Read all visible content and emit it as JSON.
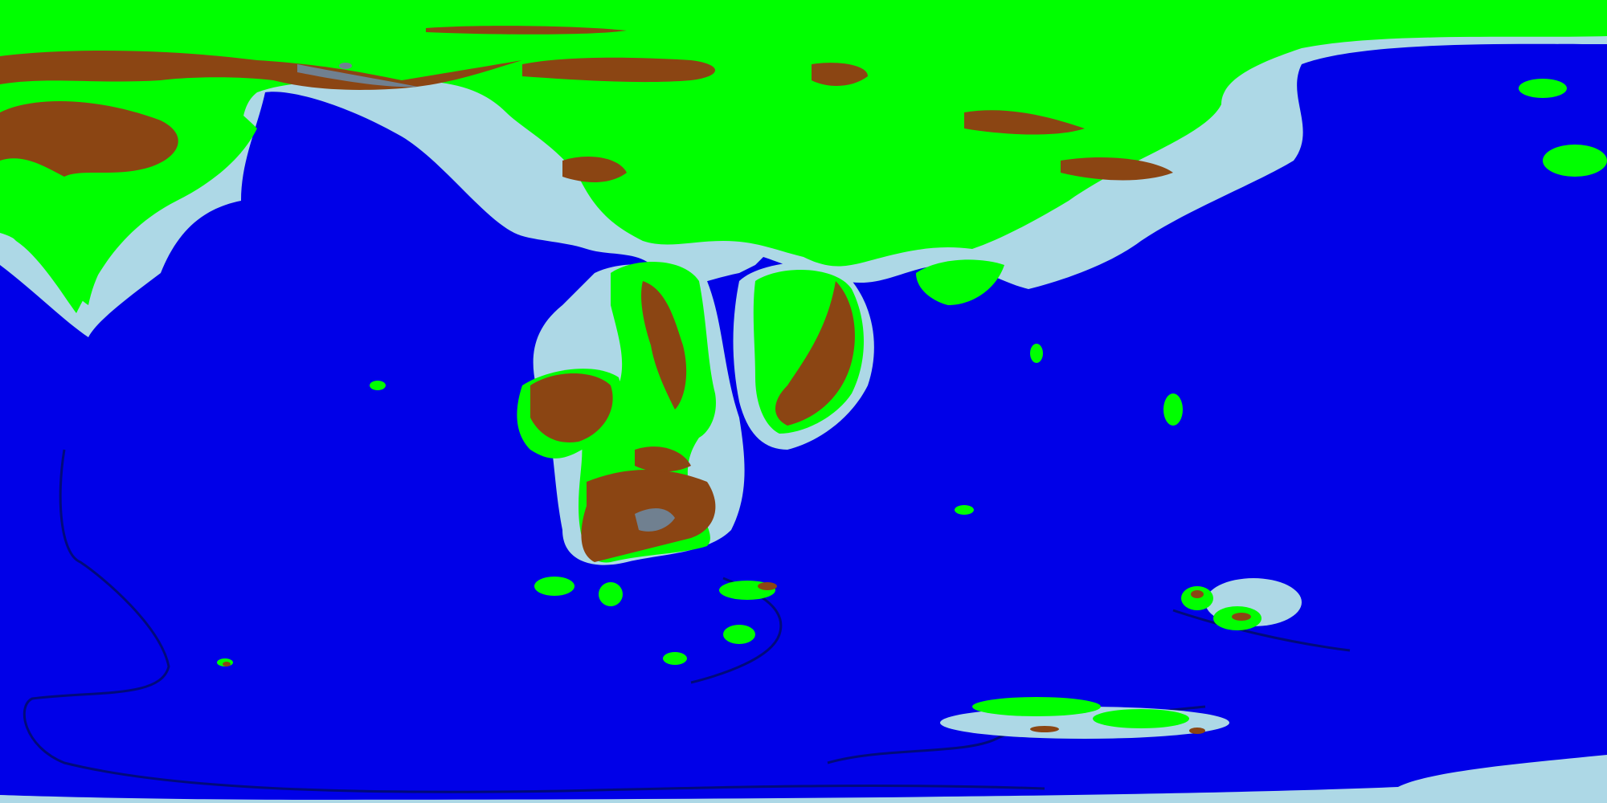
{
  "map": {
    "projection": "equirectangular",
    "legend_colors": {
      "deep_ocean": "#0000e8",
      "trench": "#000a7a",
      "shallow_shelf": "#add8e6",
      "lowland": "#00ff00",
      "highland": "#8b4513",
      "peak": "#708090"
    },
    "features": [
      "north-continent",
      "northwest-landmass",
      "central-peninsula",
      "west-peninsula-island",
      "southern-continent",
      "southern-archipelago",
      "east-island-arc",
      "southeast-island-chain",
      "south-ice-shelf",
      "western-trench",
      "southern-trench"
    ]
  }
}
